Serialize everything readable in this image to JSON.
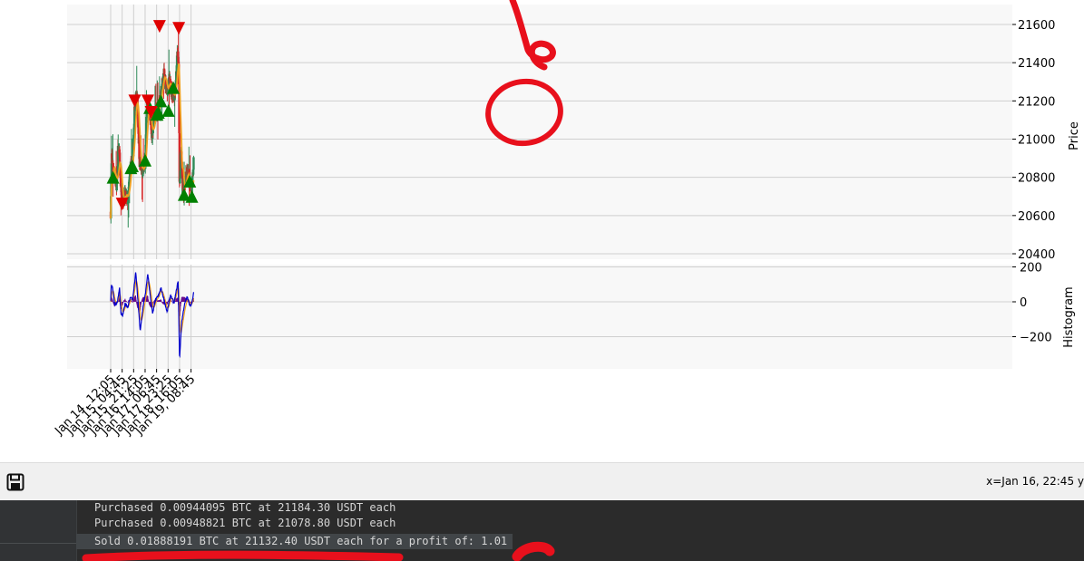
{
  "chart_data": [
    {
      "type": "candlestick",
      "ylabel": "Price",
      "ylim": [
        20330,
        21660
      ],
      "yticks": [
        "20400",
        "20600",
        "20800",
        "21000",
        "21200",
        "21400",
        "21600"
      ],
      "grid": true,
      "x_ticks": [
        "Jan 14, 12:05",
        "Jan 15, 04:45",
        "Jan 15, 21:25",
        "Jan 16, 14:05",
        "Jan 17, 06:45",
        "Jan 17, 23:25",
        "Jan 18, 16:05",
        "Jan 19, 08:45"
      ],
      "x_range_hours": [
        "Jan 14, 12:05",
        "Jan 19, 12:30"
      ],
      "price_path": [
        {
          "x": "Jan 14, 12:05",
          "y": 20620
        },
        {
          "x": "Jan 14, 13:30",
          "y": 20900
        },
        {
          "x": "Jan 14, 17:00",
          "y": 20820
        },
        {
          "x": "Jan 14, 21:00",
          "y": 20760
        },
        {
          "x": "Jan 15, 00:30",
          "y": 20960
        },
        {
          "x": "Jan 15, 02:30",
          "y": 20760
        },
        {
          "x": "Jan 15, 04:45",
          "y": 20700
        },
        {
          "x": "Jan 15, 09:00",
          "y": 20700
        },
        {
          "x": "Jan 15, 13:00",
          "y": 20680
        },
        {
          "x": "Jan 15, 17:00",
          "y": 20860
        },
        {
          "x": "Jan 15, 20:00",
          "y": 20880
        },
        {
          "x": "Jan 15, 23:00",
          "y": 21180
        },
        {
          "x": "Jan 16, 02:30",
          "y": 21220
        },
        {
          "x": "Jan 16, 06:00",
          "y": 20880
        },
        {
          "x": "Jan 16, 10:00",
          "y": 20820
        },
        {
          "x": "Jan 16, 14:05",
          "y": 20880
        },
        {
          "x": "Jan 16, 17:00",
          "y": 21200
        },
        {
          "x": "Jan 16, 20:30",
          "y": 21150
        },
        {
          "x": "Jan 16, 23:30",
          "y": 21000
        },
        {
          "x": "Jan 17, 03:00",
          "y": 21120
        },
        {
          "x": "Jan 17, 09:00",
          "y": 21150
        },
        {
          "x": "Jan 17, 13:00",
          "y": 21230
        },
        {
          "x": "Jan 17, 17:00",
          "y": 21350
        },
        {
          "x": "Jan 17, 21:00",
          "y": 21250
        },
        {
          "x": "Jan 18, 01:00",
          "y": 21300
        },
        {
          "x": "Jan 18, 05:00",
          "y": 21250
        },
        {
          "x": "Jan 18, 09:00",
          "y": 21230
        },
        {
          "x": "Jan 18, 13:00",
          "y": 21450
        },
        {
          "x": "Jan 18, 15:00",
          "y": 21380
        },
        {
          "x": "Jan 18, 16:05",
          "y": 20700
        },
        {
          "x": "Jan 18, 18:00",
          "y": 20950
        },
        {
          "x": "Jan 18, 22:00",
          "y": 20700
        },
        {
          "x": "Jan 19, 02:00",
          "y": 20820
        },
        {
          "x": "Jan 19, 06:00",
          "y": 20800
        },
        {
          "x": "Jan 19, 10:00",
          "y": 20720
        },
        {
          "x": "Jan 19, 12:30",
          "y": 20880
        }
      ],
      "buy_signals": [
        {
          "x": "Jan 14, 15:30",
          "y": 20800
        },
        {
          "x": "Jan 15, 17:30",
          "y": 20850
        },
        {
          "x": "Jan 15, 19:40",
          "y": 20860
        },
        {
          "x": "Jan 16, 14:10",
          "y": 20890
        },
        {
          "x": "Jan 16, 20:50",
          "y": 21165
        },
        {
          "x": "Jan 17, 06:45",
          "y": 21130
        },
        {
          "x": "Jan 17, 07:40",
          "y": 21130
        },
        {
          "x": "Jan 17, 09:30",
          "y": 21140
        },
        {
          "x": "Jan 17, 13:00",
          "y": 21200
        },
        {
          "x": "Jan 17, 23:55",
          "y": 21150
        },
        {
          "x": "Jan 18, 07:00",
          "y": 21270
        },
        {
          "x": "Jan 18, 22:40",
          "y": 20710
        },
        {
          "x": "Jan 19, 07:00",
          "y": 20780
        },
        {
          "x": "Jan 19, 10:00",
          "y": 20700
        }
      ],
      "sell_signals": [
        {
          "x": "Jan 15, 04:45",
          "y": 20660
        },
        {
          "x": "Jan 15, 23:00",
          "y": 21200
        },
        {
          "x": "Jan 16, 18:00",
          "y": 21200
        },
        {
          "x": "Jan 16, 22:45",
          "y": 21140
        },
        {
          "x": "Jan 17, 11:00",
          "y": 21590
        },
        {
          "x": "Jan 18, 15:00",
          "y": 21580
        }
      ]
    },
    {
      "type": "line",
      "ylabel": "Histogram",
      "ylim": [
        -380,
        210
      ],
      "yticks": [
        "200",
        "0",
        "−200"
      ],
      "grid": true,
      "macd": [
        {
          "x": "Jan 14, 12:05",
          "y": 0
        },
        {
          "x": "Jan 14, 13:00",
          "y": 100
        },
        {
          "x": "Jan 14, 15:00",
          "y": 80
        },
        {
          "x": "Jan 14, 18:00",
          "y": -20
        },
        {
          "x": "Jan 14, 22:00",
          "y": 0
        },
        {
          "x": "Jan 15, 01:00",
          "y": 80
        },
        {
          "x": "Jan 15, 03:00",
          "y": -70
        },
        {
          "x": "Jan 15, 05:30",
          "y": -80
        },
        {
          "x": "Jan 15, 09:00",
          "y": -10
        },
        {
          "x": "Jan 15, 13:00",
          "y": -30
        },
        {
          "x": "Jan 15, 17:00",
          "y": 30
        },
        {
          "x": "Jan 15, 20:00",
          "y": 10
        },
        {
          "x": "Jan 16, 00:30",
          "y": 170
        },
        {
          "x": "Jan 16, 03:00",
          "y": 40
        },
        {
          "x": "Jan 16, 07:00",
          "y": -170
        },
        {
          "x": "Jan 16, 11:00",
          "y": -30
        },
        {
          "x": "Jan 16, 15:00",
          "y": 60
        },
        {
          "x": "Jan 16, 18:00",
          "y": 160
        },
        {
          "x": "Jan 16, 22:00",
          "y": 20
        },
        {
          "x": "Jan 17, 01:00",
          "y": -70
        },
        {
          "x": "Jan 17, 05:00",
          "y": 10
        },
        {
          "x": "Jan 17, 10:00",
          "y": 40
        },
        {
          "x": "Jan 17, 13:00",
          "y": 80
        },
        {
          "x": "Jan 17, 17:00",
          "y": 20
        },
        {
          "x": "Jan 17, 22:00",
          "y": -60
        },
        {
          "x": "Jan 18, 03:00",
          "y": 40
        },
        {
          "x": "Jan 18, 08:00",
          "y": -10
        },
        {
          "x": "Jan 18, 14:00",
          "y": 120
        },
        {
          "x": "Jan 18, 16:05",
          "y": -330
        },
        {
          "x": "Jan 18, 19:00",
          "y": -120
        },
        {
          "x": "Jan 18, 23:00",
          "y": -20
        },
        {
          "x": "Jan 19, 03:00",
          "y": 30
        },
        {
          "x": "Jan 19, 07:00",
          "y": -20
        },
        {
          "x": "Jan 19, 10:00",
          "y": -10
        },
        {
          "x": "Jan 19, 12:30",
          "y": 50
        }
      ]
    }
  ],
  "toolbar": {
    "save_icon": "floppy-disk-icon",
    "coords": "x=Jan 16, 22:45 y"
  },
  "console": {
    "lines": [
      "Purchased 0.00944095 BTC at 21184.30 USDT each",
      "Purchased 0.00948821 BTC at 21078.80 USDT each",
      "Sold 0.01888191 BTC at 21132.40 USDT each for a profit of: 1.01"
    ]
  },
  "colors": {
    "up": "#2e8b57",
    "down": "#d62728",
    "ma": "#f0a020",
    "buy": "#008000",
    "sell": "#e00000",
    "macd": "#0000cc",
    "signal": "#f0a020",
    "annotation": "#e8101c"
  }
}
